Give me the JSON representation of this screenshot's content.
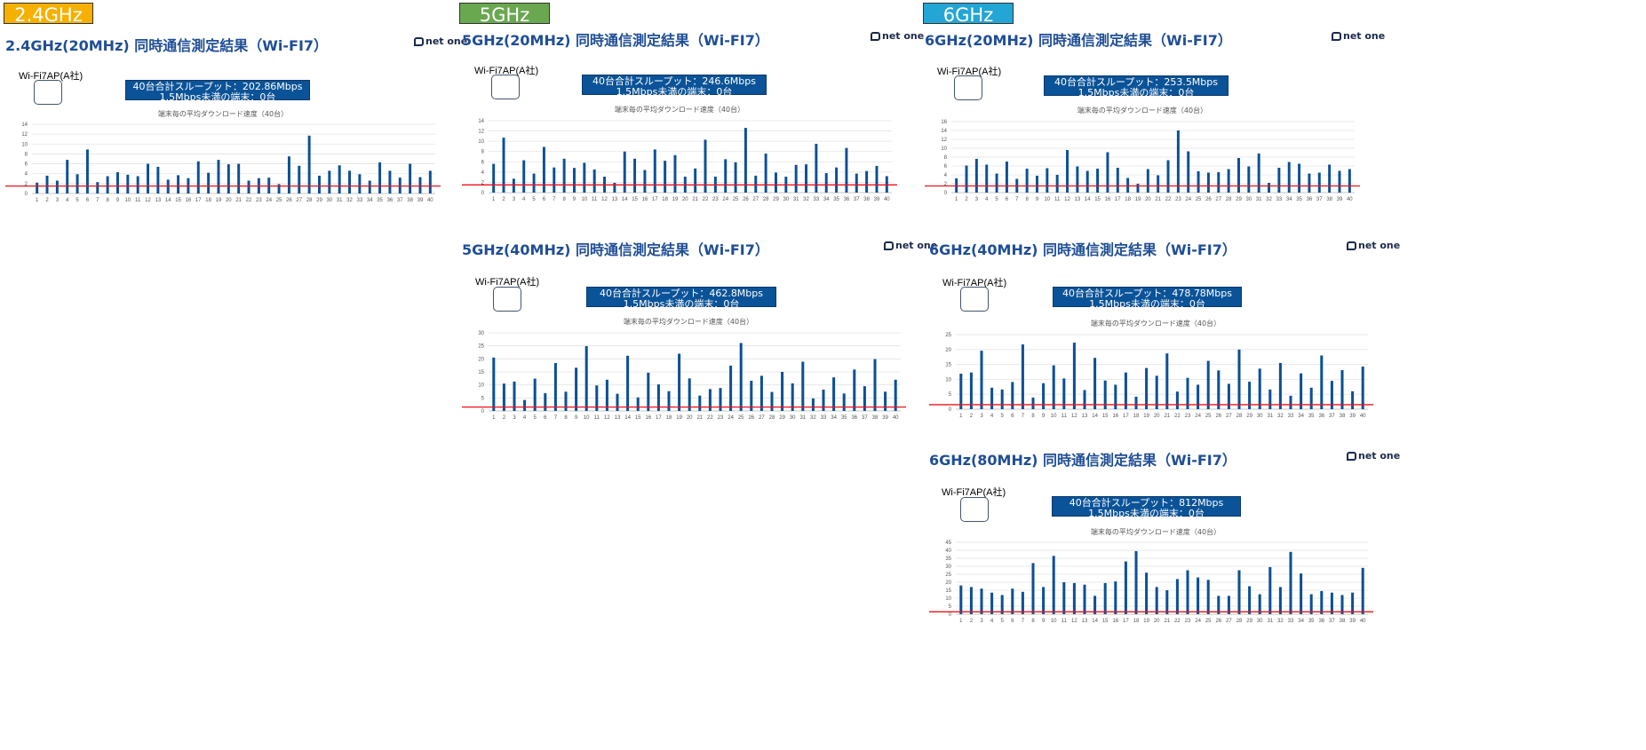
{
  "bands": [
    {
      "label": "2.4GHz",
      "color": "#f6b000"
    },
    {
      "label": "5GHz",
      "color": "#6aa84f"
    },
    {
      "label": "6GHz",
      "color": "#23a6d5"
    }
  ],
  "logo_text": "net one",
  "colors": {
    "bar": "#0b4f96",
    "threshold": "#e8141c",
    "title": "#1f4e96",
    "info_bg": "#0b5398"
  },
  "panels": [
    {
      "title": "2.4GHz(20MHz) 同時通信測定結果（Wi-FI7）",
      "ap_label": "Wi-Fi7AP(A社)",
      "info_line1": "40台合計スループット：202.86Mbps",
      "info_line2": "1.5Mbps未満の端末：0台",
      "chart_title": "端末毎の平均ダウンロード速度（40台）",
      "chart_data": {
        "type": "bar",
        "categories": [
          "1",
          "2",
          "3",
          "4",
          "5",
          "6",
          "7",
          "8",
          "9",
          "10",
          "11",
          "12",
          "13",
          "14",
          "15",
          "16",
          "17",
          "18",
          "19",
          "20",
          "21",
          "22",
          "23",
          "24",
          "25",
          "26",
          "27",
          "28",
          "29",
          "30",
          "31",
          "32",
          "33",
          "34",
          "35",
          "36",
          "37",
          "38",
          "39",
          "40"
        ],
        "values": [
          2.2,
          3.6,
          2.6,
          6.8,
          3.9,
          8.9,
          2.3,
          3.5,
          4.3,
          3.8,
          3.5,
          6.0,
          5.4,
          2.8,
          3.7,
          3.1,
          6.5,
          4.2,
          6.8,
          5.9,
          6.0,
          2.6,
          3.1,
          3.2,
          1.9,
          7.5,
          5.6,
          11.7,
          3.6,
          4.6,
          5.7,
          4.6,
          3.9,
          2.6,
          6.3,
          4.6,
          3.2,
          6.0,
          3.3,
          4.6
        ],
        "yticks": [
          0,
          2,
          4,
          6,
          8,
          10,
          12,
          14
        ],
        "ylim": [
          0,
          14
        ],
        "threshold": 1.5
      }
    },
    {
      "title": "5GHz(20MHz) 同時通信測定結果（Wi-FI7）",
      "ap_label": "Wi-Fi7AP(A社)",
      "info_line1": "40台合計スループット：246.6Mbps",
      "info_line2": "1.5Mbps未満の端末：0台",
      "chart_title": "端末毎の平均ダウンロード速度（40台）",
      "chart_data": {
        "type": "bar",
        "categories": [
          "1",
          "2",
          "3",
          "4",
          "5",
          "6",
          "7",
          "8",
          "9",
          "10",
          "11",
          "12",
          "13",
          "14",
          "15",
          "16",
          "17",
          "18",
          "19",
          "20",
          "21",
          "22",
          "23",
          "24",
          "25",
          "26",
          "27",
          "28",
          "29",
          "30",
          "31",
          "32",
          "33",
          "34",
          "35",
          "36",
          "37",
          "38",
          "39",
          "40"
        ],
        "values": [
          5.6,
          10.7,
          2.7,
          6.3,
          3.7,
          8.9,
          4.9,
          6.6,
          4.8,
          5.8,
          4.5,
          3.1,
          1.9,
          8.0,
          6.6,
          4.4,
          8.4,
          6.2,
          7.3,
          3.1,
          4.7,
          10.3,
          3.1,
          6.5,
          5.9,
          12.6,
          3.3,
          7.6,
          3.9,
          3.1,
          5.4,
          5.5,
          9.5,
          3.8,
          4.9,
          8.7,
          3.7,
          4.2,
          5.2,
          3.2
        ],
        "yticks": [
          0,
          2,
          4,
          6,
          8,
          10,
          12,
          14
        ],
        "ylim": [
          0,
          14
        ],
        "threshold": 1.5
      }
    },
    {
      "title": "6GHz(20MHz) 同時通信測定結果（Wi-FI7）",
      "ap_label": "Wi-Fi7AP(A社)",
      "info_line1": "40台合計スループット：253.5Mbps",
      "info_line2": "1.5Mbps未満の端末：0台",
      "chart_title": "端末毎の平均ダウンロード速度（40台）",
      "chart_data": {
        "type": "bar",
        "categories": [
          "1",
          "2",
          "3",
          "4",
          "5",
          "6",
          "7",
          "8",
          "9",
          "10",
          "11",
          "12",
          "13",
          "14",
          "15",
          "16",
          "17",
          "18",
          "19",
          "20",
          "21",
          "22",
          "23",
          "24",
          "25",
          "26",
          "27",
          "28",
          "29",
          "30",
          "31",
          "32",
          "33",
          "34",
          "35",
          "36",
          "37",
          "38",
          "39",
          "40"
        ],
        "values": [
          3.2,
          6.1,
          7.6,
          6.3,
          4.3,
          7.0,
          3.1,
          5.4,
          3.8,
          5.5,
          4.0,
          9.6,
          5.9,
          4.9,
          5.4,
          9.1,
          5.6,
          3.3,
          2.0,
          5.3,
          3.9,
          7.3,
          14.0,
          9.3,
          4.8,
          4.5,
          4.6,
          5.3,
          7.8,
          5.9,
          8.8,
          2.2,
          5.6,
          6.9,
          6.5,
          4.3,
          4.5,
          6.3,
          4.9,
          5.3
        ],
        "yticks": [
          0,
          2,
          4,
          6,
          8,
          10,
          12,
          14,
          16
        ],
        "ylim": [
          0,
          16
        ],
        "threshold": 1.5
      }
    },
    {
      "title": "5GHz(40MHz) 同時通信測定結果（Wi-FI7）",
      "ap_label": "Wi-Fi7AP(A社)",
      "info_line1": "40台合計スループット：462.8Mbps",
      "info_line2": "1.5Mbps未満の端末：0台",
      "chart_title": "端末毎の平均ダウンロード速度（40台）",
      "chart_data": {
        "type": "bar",
        "categories": [
          "1",
          "2",
          "3",
          "4",
          "5",
          "6",
          "7",
          "8",
          "9",
          "10",
          "11",
          "12",
          "13",
          "14",
          "15",
          "16",
          "17",
          "18",
          "19",
          "20",
          "21",
          "22",
          "23",
          "24",
          "25",
          "26",
          "27",
          "28",
          "29",
          "30",
          "31",
          "32",
          "33",
          "34",
          "35",
          "36",
          "37",
          "38",
          "39",
          "40"
        ],
        "values": [
          20.5,
          10.5,
          11.3,
          4.2,
          12.4,
          6.8,
          18.4,
          7.4,
          16.6,
          24.9,
          9.8,
          12.0,
          6.6,
          21.2,
          5.2,
          14.7,
          10.2,
          7.6,
          22.0,
          12.5,
          5.9,
          8.4,
          8.8,
          17.4,
          26.1,
          11.6,
          13.5,
          7.3,
          15.0,
          10.6,
          18.9,
          4.8,
          8.2,
          12.9,
          6.7,
          15.9,
          9.5,
          19.9,
          7.4,
          12.0
        ],
        "yticks": [
          0,
          5,
          10,
          15,
          20,
          25,
          30
        ],
        "ylim": [
          0,
          30
        ],
        "threshold": 1.5
      }
    },
    {
      "title": "6GHz(40MHz) 同時通信測定結果（Wi-FI7）",
      "ap_label": "Wi-Fi7AP(A社)",
      "info_line1": "40台合計スループット：478.78Mbps",
      "info_line2": "1.5Mbps未満の端末：0台",
      "chart_title": "端末毎の平均ダウンロード速度（40台）",
      "chart_data": {
        "type": "bar",
        "categories": [
          "1",
          "2",
          "3",
          "4",
          "5",
          "6",
          "7",
          "8",
          "9",
          "10",
          "11",
          "12",
          "13",
          "14",
          "15",
          "16",
          "17",
          "18",
          "19",
          "20",
          "21",
          "22",
          "23",
          "24",
          "25",
          "26",
          "27",
          "28",
          "29",
          "30",
          "31",
          "32",
          "33",
          "34",
          "35",
          "36",
          "37",
          "38",
          "39",
          "40"
        ],
        "values": [
          11.9,
          12.3,
          19.6,
          7.2,
          6.6,
          9.1,
          21.7,
          3.9,
          8.7,
          14.7,
          10.3,
          22.3,
          6.4,
          17.2,
          9.6,
          8.2,
          12.3,
          4.2,
          13.8,
          11.2,
          18.7,
          5.9,
          10.5,
          8.2,
          16.2,
          13.0,
          8.5,
          20.0,
          9.2,
          13.6,
          6.6,
          15.5,
          4.5,
          12.0,
          7.2,
          18.0,
          9.5,
          13.1,
          6.0,
          14.3
        ],
        "yticks": [
          0,
          5,
          10,
          15,
          20,
          25
        ],
        "ylim": [
          0,
          25
        ],
        "threshold": 1.5
      }
    },
    {
      "title": "6GHz(80MHz) 同時通信測定結果（Wi-FI7）",
      "ap_label": "Wi-Fi7AP(A社)",
      "info_line1": "40台合計スループット：812Mbps",
      "info_line2": "1.5Mbps未満の端末：0台",
      "chart_title": "端末毎の平均ダウンロード速度（40台）",
      "chart_data": {
        "type": "bar",
        "categories": [
          "1",
          "2",
          "3",
          "4",
          "5",
          "6",
          "7",
          "8",
          "9",
          "10",
          "11",
          "12",
          "13",
          "14",
          "15",
          "16",
          "17",
          "18",
          "19",
          "20",
          "21",
          "22",
          "23",
          "24",
          "25",
          "26",
          "27",
          "28",
          "29",
          "30",
          "31",
          "32",
          "33",
          "34",
          "35",
          "36",
          "37",
          "38",
          "39",
          "40"
        ],
        "values": [
          18.0,
          17.0,
          16.0,
          13.5,
          12.0,
          16.0,
          14.0,
          32.0,
          17.0,
          36.5,
          20.0,
          19.5,
          18.5,
          11.5,
          19.5,
          20.5,
          33.0,
          39.5,
          26.0,
          17.0,
          15.0,
          22.0,
          27.5,
          23.0,
          21.5,
          11.5,
          11.5,
          27.5,
          17.5,
          12.5,
          29.5,
          17.0,
          39.0,
          25.5,
          12.5,
          14.5,
          13.5,
          12.0,
          13.5,
          29.0
        ],
        "yticks": [
          0,
          5,
          10,
          15,
          20,
          25,
          30,
          35,
          40,
          45
        ],
        "ylim": [
          0,
          45
        ],
        "threshold": 1.5
      }
    }
  ]
}
